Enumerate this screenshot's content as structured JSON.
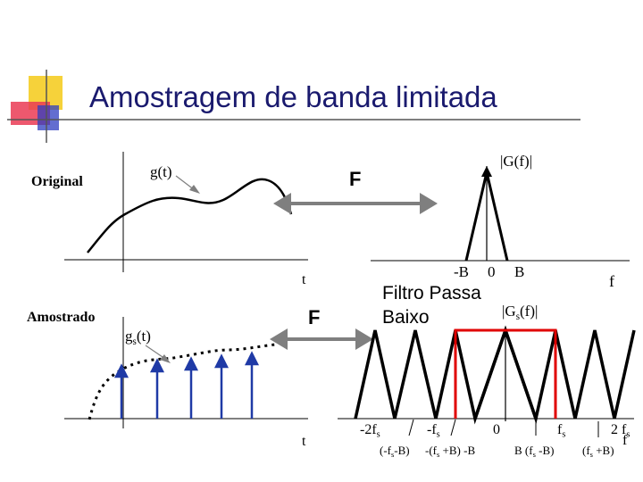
{
  "slide": {
    "title": "Amostragem de banda limitada",
    "colors": {
      "title": "#1a1a6e",
      "yellow_square": "#f6d23a",
      "red_square": "#ea3b55",
      "blue_square": "#2f3ec0",
      "arrow": "#7f7f7f",
      "signal_blue": "#1f3aa6",
      "filter_red": "#e00000"
    }
  },
  "labels": {
    "original": "Original",
    "amostrado": "Amostrado",
    "g_t": "g(t)",
    "gs_t_main": "g",
    "gs_t_sub": "s",
    "gs_t_tail": "(t)",
    "t_top": "t",
    "t_bottom": "t",
    "F_top": "F",
    "F_bottom": "F",
    "G_f": "|G(f)|",
    "Gs_f_head": "|G",
    "Gs_f_sub": "s",
    "Gs_f_tail": "(f)|",
    "f_top": "f",
    "f_bottom": "f",
    "filter_line1": "Filtro Passa",
    "filter_line2": "Baixo",
    "top_ticks": {
      "neg_B": "-B",
      "zero": "0",
      "B": "B"
    },
    "bottom_ticks": {
      "neg_2fs_head": "-2f",
      "neg_2fs_sub": "s",
      "neg_fs_head": "-f",
      "neg_fs_sub": "s",
      "zero": "0",
      "fs_head": "f",
      "fs_sub": "s",
      "two_fs_head": "2 f",
      "two_fs_sub": "s"
    },
    "bottom_sublabels": {
      "a_open": "(-f",
      "a_sub": "s",
      "a_close": "-B)",
      "b_open": "-(f",
      "b_sub": "s",
      "b_close": " +B) -B",
      "c_open": "B (f",
      "c_sub": "s",
      "c_close": " -B)",
      "d_open": "(f",
      "d_sub": "s",
      "d_close": " +B)"
    }
  }
}
